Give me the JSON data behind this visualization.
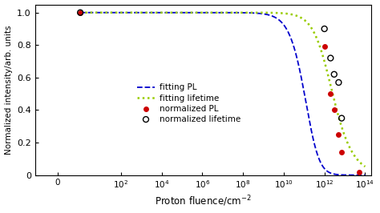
{
  "title": "",
  "xlabel": "Proton fluence/cm$^{-2}$",
  "ylabel": "Normalized intensity/arb. units",
  "ylim": [
    0,
    1.05
  ],
  "fitting_PL_color": "#0000CC",
  "fitting_lifetime_color": "#99CC00",
  "normalized_PL_color": "#CC0000",
  "normalized_lifetime_color": "#000000",
  "background_color": "#ffffff",
  "KD_PL": 250000000000.0,
  "KD_lifetime": 1500000000000.0,
  "pl_data_x": [
    1.0,
    1000000000000.0,
    2000000000000.0,
    3000000000000.0,
    5000000000000.0,
    7000000000000.0,
    50000000000000.0
  ],
  "pl_data_y": [
    1.0,
    0.79,
    0.5,
    0.4,
    0.25,
    0.14,
    0.02
  ],
  "lifetime_data_x": [
    1.0,
    1000000000000.0,
    2000000000000.0,
    3000000000000.0,
    5000000000000.0,
    7000000000000.0
  ],
  "lifetime_data_y": [
    1.0,
    0.9,
    0.72,
    0.62,
    0.57,
    0.35
  ],
  "x_ticks": [
    0,
    100,
    10000,
    1000000,
    100000000,
    10000000000,
    1000000000000,
    100000000000000
  ],
  "x_tick_labels": [
    "0",
    "$10^{2}$",
    "$10^{4}$",
    "$10^{6}$",
    "$10^{8}$",
    "$10^{10}$",
    "$10^{12}$",
    "$10^{14}$"
  ],
  "y_ticks": [
    0,
    0.2,
    0.4,
    0.6,
    0.8,
    1.0
  ],
  "y_tick_labels": [
    "0",
    "0.2",
    "0.4",
    "0.6",
    "0.8",
    "1.0"
  ],
  "linthresh": 1.0,
  "xlim_max": 200000000000000.0
}
